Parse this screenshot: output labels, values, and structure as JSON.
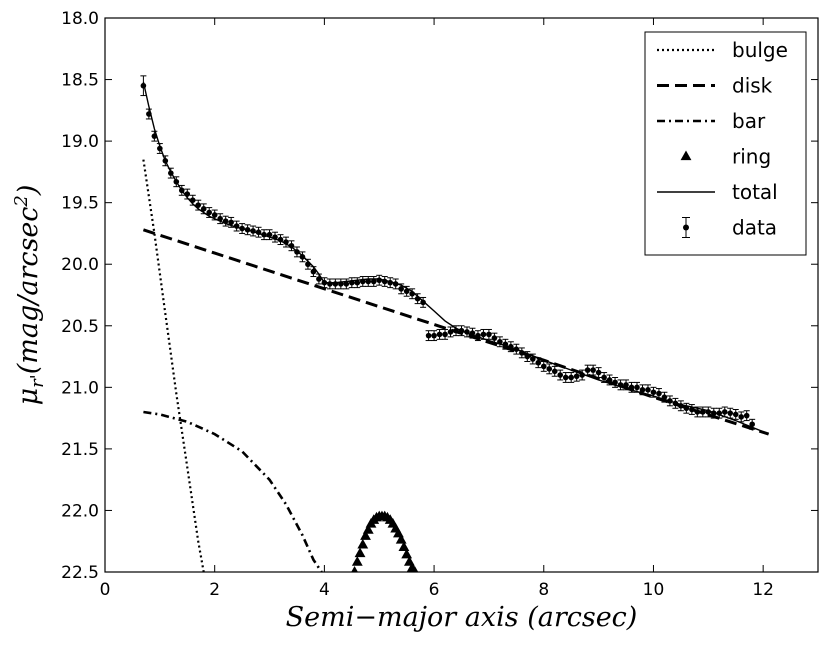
{
  "chart_data": {
    "type": "scatter",
    "title": "",
    "xlabel": "Semi−major axis (arcsec)",
    "ylabel": "μ_r'(mag/arcsec²)",
    "ylabel_parts": {
      "main": "μ",
      "sub": "r'",
      "paren": "(mag/arcsec",
      "sup": "2",
      "close": ")"
    },
    "xlim": [
      0,
      13
    ],
    "ylim": [
      22.5,
      18.0
    ],
    "y_inverted": true,
    "x_ticks": [
      0,
      2,
      4,
      6,
      8,
      10,
      12
    ],
    "x_tick_labels": [
      "0",
      "2",
      "4",
      "6",
      "8",
      "10",
      "12"
    ],
    "y_ticks": [
      18.0,
      18.5,
      19.0,
      19.5,
      20.0,
      20.5,
      21.0,
      21.5,
      22.0,
      22.5
    ],
    "y_tick_labels": [
      "18.0",
      "18.5",
      "19.0",
      "19.5",
      "20.0",
      "20.5",
      "21.0",
      "21.5",
      "22.0",
      "22.5"
    ],
    "grid": false,
    "legend_position": "top-right",
    "legend": [
      {
        "label": "bulge",
        "style": "dotted"
      },
      {
        "label": "disk",
        "style": "dashed"
      },
      {
        "label": "bar",
        "style": "dash-dot"
      },
      {
        "label": "ring",
        "style": "triangle-marker"
      },
      {
        "label": "total",
        "style": "solid"
      },
      {
        "label": "data",
        "style": "errorbar-marker"
      }
    ],
    "series": [
      {
        "name": "bulge",
        "kind": "line",
        "style": "dotted",
        "x": [
          0.7,
          0.9,
          1.1,
          1.3,
          1.5,
          1.7,
          1.8
        ],
        "y": [
          19.15,
          19.75,
          20.4,
          21.05,
          21.65,
          22.25,
          22.5
        ]
      },
      {
        "name": "disk",
        "kind": "line",
        "style": "dashed",
        "x": [
          0.7,
          2,
          4,
          6,
          8,
          10,
          12.1
        ],
        "y": [
          19.72,
          19.91,
          20.2,
          20.49,
          20.78,
          21.08,
          21.38
        ]
      },
      {
        "name": "bar",
        "kind": "line",
        "style": "dash-dot",
        "x": [
          0.7,
          1.0,
          1.5,
          2.0,
          2.5,
          3.0,
          3.3,
          3.6,
          3.8,
          3.95
        ],
        "y": [
          21.2,
          21.22,
          21.28,
          21.38,
          21.52,
          21.75,
          21.95,
          22.2,
          22.4,
          22.5
        ]
      },
      {
        "name": "ring",
        "kind": "markers",
        "style": "triangle-marker",
        "x": [
          4.55,
          4.6,
          4.65,
          4.7,
          4.75,
          4.8,
          4.85,
          4.9,
          4.95,
          5.0,
          5.05,
          5.1,
          5.15,
          5.2,
          5.25,
          5.3,
          5.35,
          5.4,
          5.45,
          5.5,
          5.55,
          5.6,
          5.65
        ],
        "y": [
          22.5,
          22.42,
          22.35,
          22.28,
          22.21,
          22.16,
          22.11,
          22.08,
          22.06,
          22.05,
          22.05,
          22.05,
          22.06,
          22.08,
          22.11,
          22.15,
          22.19,
          22.24,
          22.3,
          22.36,
          22.42,
          22.47,
          22.5
        ]
      },
      {
        "name": "total",
        "kind": "line",
        "style": "solid",
        "x": [
          0.7,
          0.8,
          0.9,
          1.0,
          1.1,
          1.2,
          1.3,
          1.4,
          1.5,
          1.6,
          1.7,
          1.8,
          1.9,
          2.0,
          2.2,
          2.4,
          2.6,
          2.8,
          3.0,
          3.2,
          3.4,
          3.6,
          3.8,
          3.9,
          4.0,
          4.2,
          4.4,
          4.6,
          4.8,
          5.0,
          5.2,
          5.4,
          5.6,
          5.8,
          6.0,
          6.2,
          6.4,
          6.6,
          6.8,
          7.0,
          7.5,
          8.0,
          8.5,
          9.0,
          9.5,
          10.0,
          10.5,
          11.0,
          11.5,
          12.0,
          12.1
        ],
        "y": [
          18.52,
          18.72,
          18.9,
          19.04,
          19.16,
          19.25,
          19.33,
          19.4,
          19.46,
          19.51,
          19.55,
          19.58,
          19.61,
          19.63,
          19.67,
          19.7,
          19.72,
          19.75,
          19.78,
          19.81,
          19.86,
          19.93,
          20.02,
          20.08,
          20.15,
          20.15,
          20.14,
          20.13,
          20.12,
          20.12,
          20.14,
          20.17,
          20.22,
          20.3,
          20.38,
          20.46,
          20.52,
          20.56,
          20.59,
          20.62,
          20.69,
          20.78,
          20.86,
          20.94,
          21.01,
          21.07,
          21.14,
          21.19,
          21.27,
          21.36,
          21.38
        ]
      },
      {
        "name": "data",
        "kind": "errorbar",
        "style": "errorbar-marker",
        "x": [
          0.7,
          0.8,
          0.9,
          1.0,
          1.1,
          1.2,
          1.3,
          1.4,
          1.5,
          1.6,
          1.7,
          1.8,
          1.9,
          2.0,
          2.1,
          2.2,
          2.3,
          2.4,
          2.5,
          2.6,
          2.7,
          2.8,
          2.9,
          3.0,
          3.1,
          3.2,
          3.3,
          3.4,
          3.5,
          3.6,
          3.7,
          3.8,
          3.9,
          4.0,
          4.1,
          4.2,
          4.3,
          4.4,
          4.5,
          4.6,
          4.7,
          4.8,
          4.9,
          5.0,
          5.1,
          5.2,
          5.3,
          5.4,
          5.5,
          5.6,
          5.7,
          5.8,
          5.9,
          6.0,
          6.1,
          6.2,
          6.3,
          6.4,
          6.5,
          6.6,
          6.7,
          6.8,
          6.9,
          7.0,
          7.1,
          7.2,
          7.3,
          7.4,
          7.5,
          7.6,
          7.7,
          7.8,
          7.9,
          8.0,
          8.1,
          8.2,
          8.3,
          8.4,
          8.5,
          8.6,
          8.7,
          8.8,
          8.9,
          9.0,
          9.1,
          9.2,
          9.3,
          9.4,
          9.5,
          9.6,
          9.7,
          9.8,
          9.9,
          10.0,
          10.1,
          10.2,
          10.3,
          10.4,
          10.5,
          10.6,
          10.7,
          10.8,
          10.9,
          11.0,
          11.1,
          11.2,
          11.3,
          11.4,
          11.5,
          11.6,
          11.7,
          11.8
        ],
        "y": [
          18.55,
          18.78,
          18.96,
          19.06,
          19.16,
          19.26,
          19.33,
          19.4,
          19.43,
          19.48,
          19.52,
          19.55,
          19.58,
          19.6,
          19.63,
          19.65,
          19.66,
          19.69,
          19.71,
          19.72,
          19.73,
          19.74,
          19.76,
          19.76,
          19.78,
          19.8,
          19.82,
          19.85,
          19.9,
          19.94,
          20.0,
          20.06,
          20.12,
          20.15,
          20.16,
          20.16,
          20.16,
          20.16,
          20.15,
          20.15,
          20.14,
          20.14,
          20.14,
          20.13,
          20.14,
          20.15,
          20.16,
          20.2,
          20.22,
          20.24,
          20.28,
          20.31,
          20.58,
          20.58,
          20.57,
          20.57,
          20.55,
          20.54,
          20.54,
          20.55,
          20.56,
          20.58,
          20.57,
          20.57,
          20.6,
          20.63,
          20.65,
          20.67,
          20.69,
          20.72,
          20.75,
          20.77,
          20.8,
          20.83,
          20.85,
          20.87,
          20.9,
          20.92,
          20.92,
          20.91,
          20.9,
          20.86,
          20.86,
          20.88,
          20.92,
          20.94,
          20.96,
          20.98,
          20.98,
          21.0,
          21.0,
          21.02,
          21.02,
          21.04,
          21.05,
          21.08,
          21.11,
          21.13,
          21.15,
          21.17,
          21.18,
          21.2,
          21.2,
          21.2,
          21.21,
          21.21,
          21.2,
          21.21,
          21.22,
          21.24,
          21.23,
          21.3
        ],
        "yerr": 0.04,
        "yerr_first": 0.08
      }
    ]
  }
}
